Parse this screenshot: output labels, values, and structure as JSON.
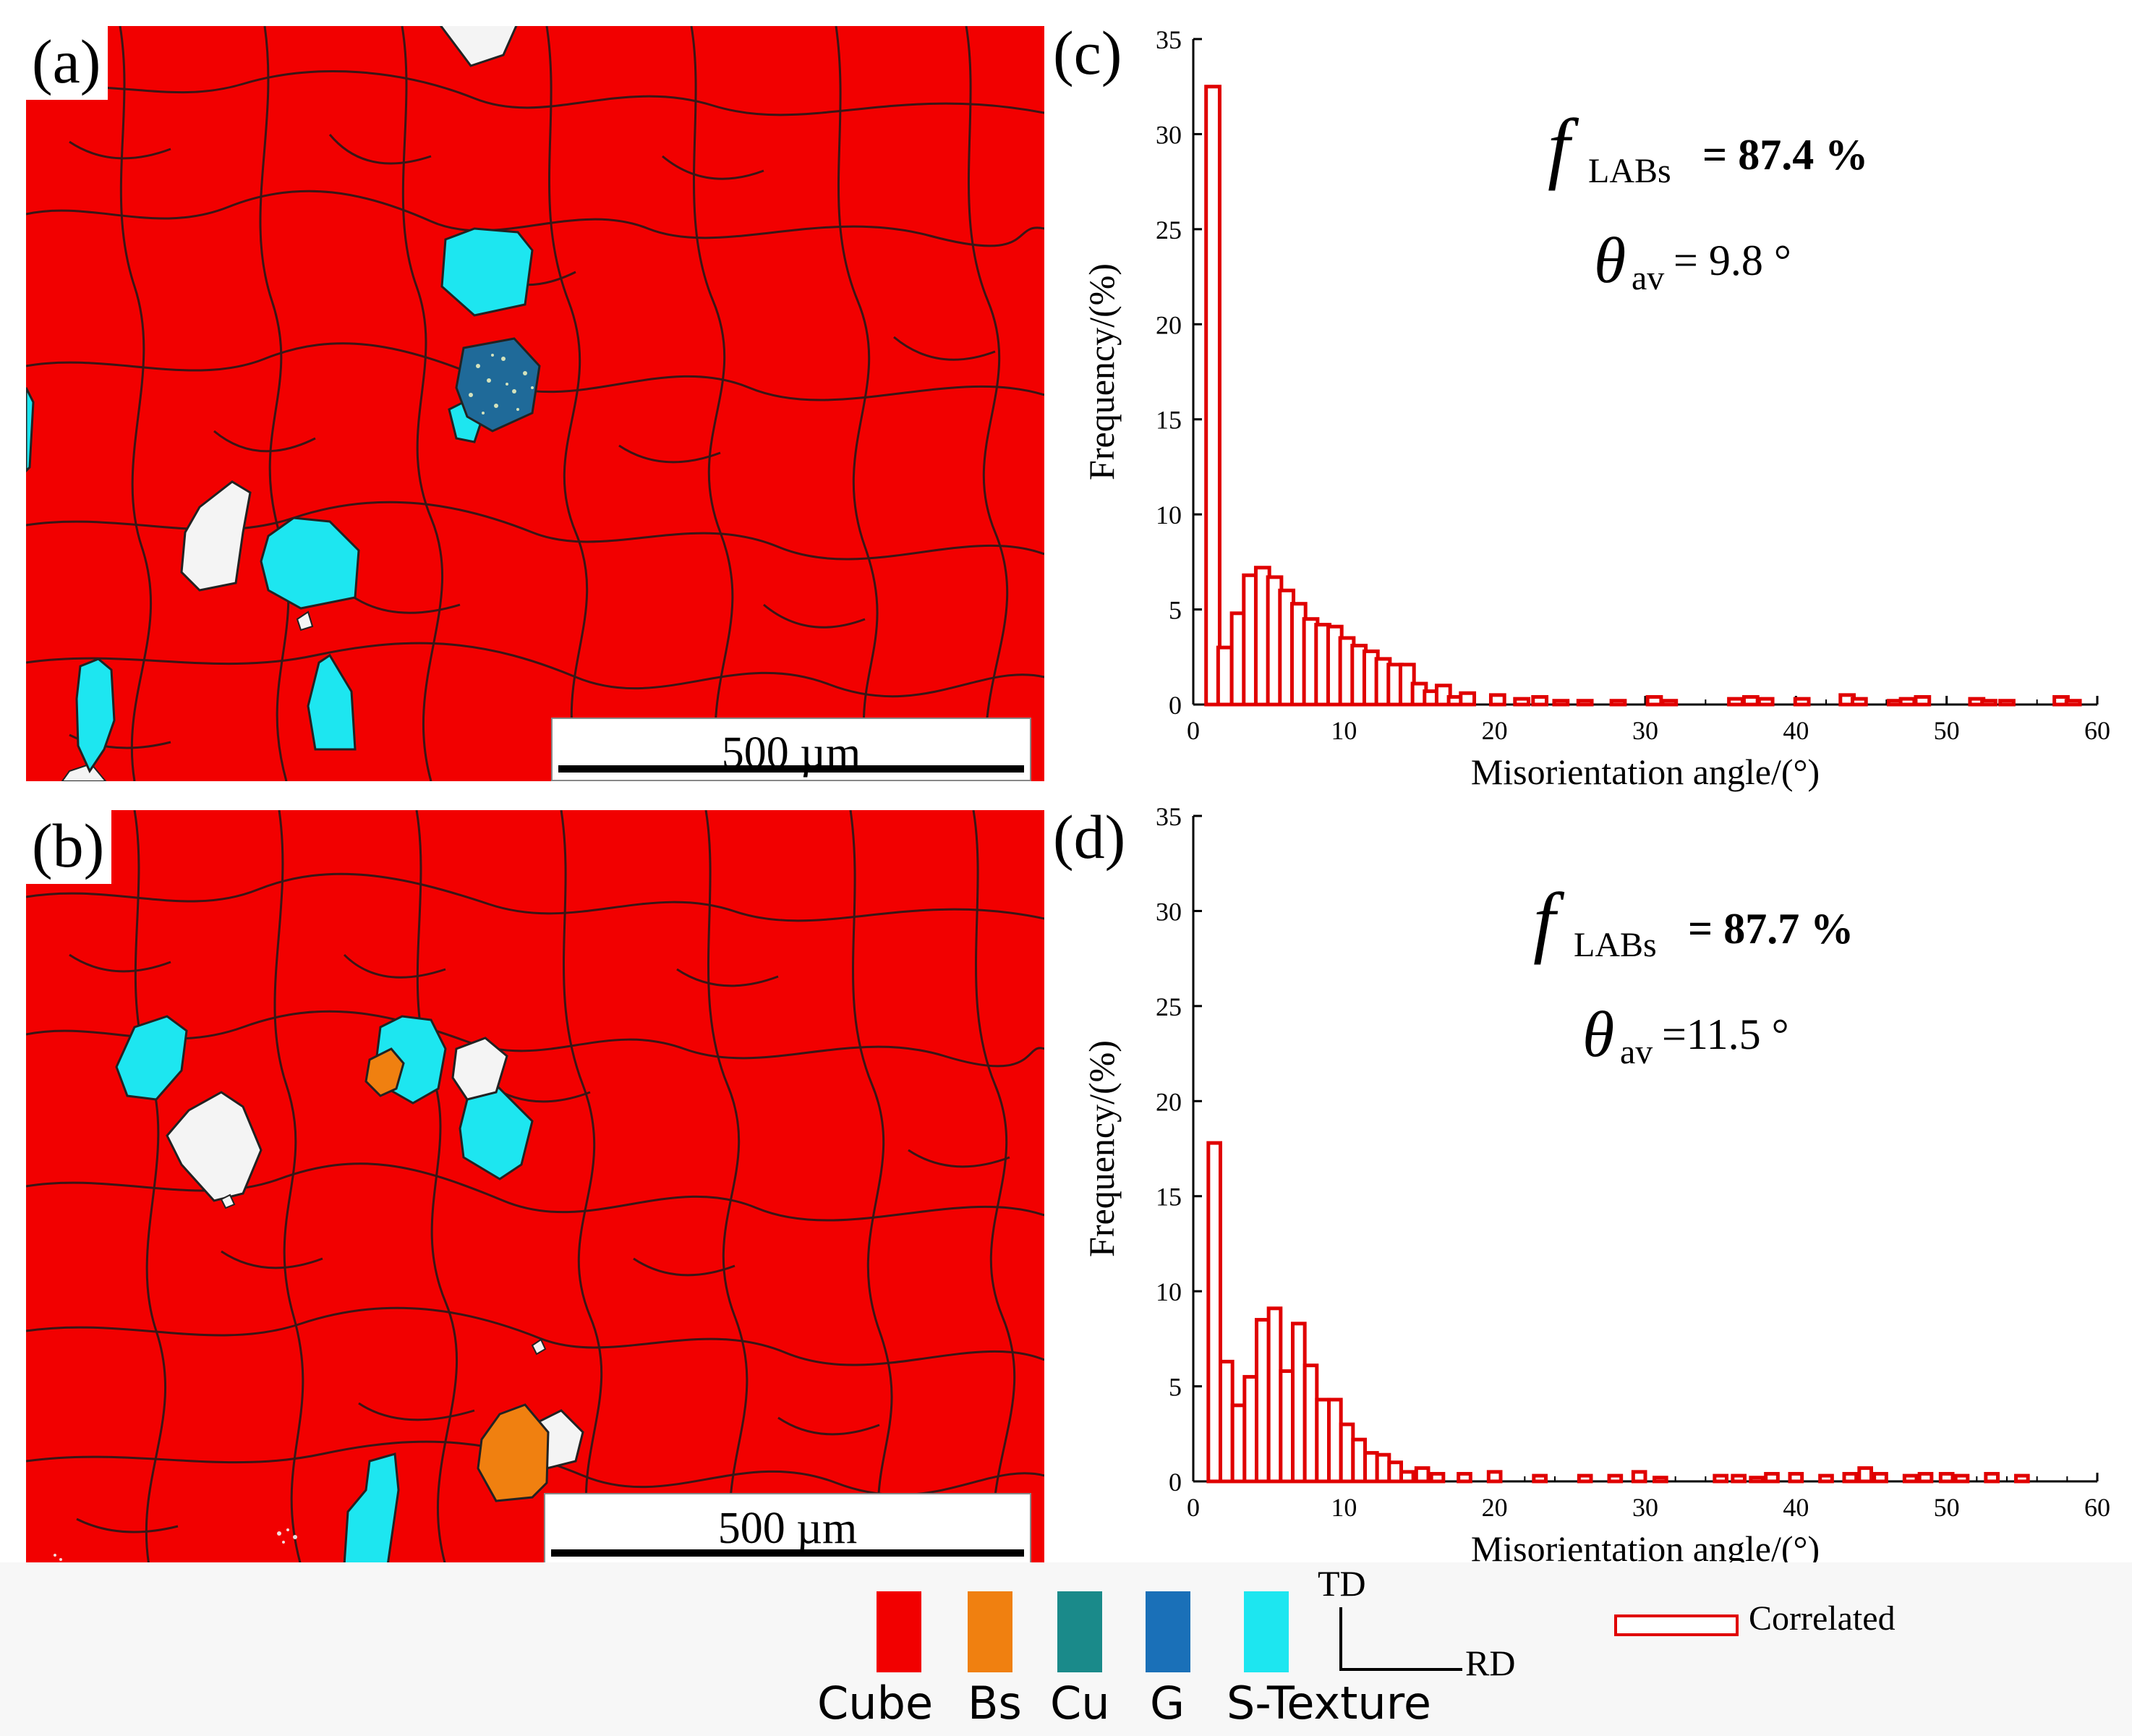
{
  "panels": {
    "a": {
      "label": "(a)",
      "scale_text": "500 µm"
    },
    "b": {
      "label": "(b)",
      "scale_text": "500 µm"
    },
    "c": {
      "label": "(c)"
    },
    "d": {
      "label": "(d)"
    }
  },
  "legend": {
    "items": [
      {
        "name": "Cube",
        "color": "#f20000"
      },
      {
        "name": "Bs",
        "color": "#f08010"
      },
      {
        "name": "Cu",
        "color": "#1a8a8a"
      },
      {
        "name": "G",
        "color": "#1a70b8"
      },
      {
        "name": "S-Texture",
        "color": "#1de6f0"
      }
    ],
    "axes": {
      "td": "TD",
      "rd": "RD"
    },
    "series_label": "Correlated"
  },
  "chart_data": [
    {
      "type": "bar",
      "panel": "c",
      "xlabel": "Misorientation angle/(°)",
      "ylabel": "Frequency/(%)",
      "xlim": [
        0,
        60
      ],
      "ylim": [
        0,
        35
      ],
      "xticks": [
        0,
        10,
        20,
        30,
        40,
        50,
        60
      ],
      "yticks": [
        0,
        5,
        10,
        15,
        20,
        25,
        30,
        35
      ],
      "annotations": {
        "f_symbol": "f",
        "f_sub": "LABs",
        "f_value": "= 87.4 %",
        "theta_symbol": "θ",
        "theta_sub": "av",
        "theta_value": "= 9.8 °"
      },
      "series": [
        {
          "name": "Correlated",
          "bin_width": 0.9,
          "x": [
            1.3,
            2.1,
            3.0,
            3.8,
            4.6,
            5.4,
            6.2,
            7.0,
            7.8,
            8.6,
            9.4,
            10.2,
            11.0,
            11.8,
            12.6,
            13.4,
            14.2,
            15.0,
            15.8,
            16.6,
            17.4,
            18.2,
            20.2,
            21.8,
            23.0,
            24.4,
            26.0,
            28.2,
            30.6,
            31.6,
            36.0,
            37.0,
            38.0,
            40.4,
            43.4,
            44.2,
            46.6,
            47.4,
            48.4,
            52.0,
            52.8,
            54.0,
            57.6,
            58.4
          ],
          "values": [
            32.5,
            3.0,
            4.8,
            6.8,
            7.2,
            6.7,
            6.0,
            5.3,
            4.5,
            4.2,
            4.1,
            3.5,
            3.1,
            2.8,
            2.4,
            2.1,
            2.1,
            1.1,
            0.7,
            1.0,
            0.4,
            0.6,
            0.5,
            0.3,
            0.4,
            0.2,
            0.2,
            0.2,
            0.4,
            0.2,
            0.3,
            0.4,
            0.3,
            0.3,
            0.5,
            0.3,
            0.2,
            0.3,
            0.4,
            0.3,
            0.2,
            0.2,
            0.4,
            0.2
          ]
        }
      ]
    },
    {
      "type": "bar",
      "panel": "d",
      "xlabel": "Misorientation angle/(°)",
      "ylabel": "Frequency/(%)",
      "xlim": [
        0,
        60
      ],
      "ylim": [
        0,
        35
      ],
      "xticks": [
        0,
        10,
        20,
        30,
        40,
        50,
        60
      ],
      "yticks": [
        0,
        5,
        10,
        15,
        20,
        25,
        30,
        35
      ],
      "annotations": {
        "f_symbol": "f",
        "f_sub": "LABs",
        "f_value": "= 87.7 %",
        "theta_symbol": "θ",
        "theta_sub": "av",
        "theta_value": "=11.5 °"
      },
      "series": [
        {
          "name": "Correlated",
          "bin_width": 0.8,
          "x": [
            1.4,
            2.2,
            3.0,
            3.8,
            4.6,
            5.4,
            6.2,
            7.0,
            7.8,
            8.6,
            9.4,
            10.2,
            11.0,
            11.8,
            12.6,
            13.4,
            14.2,
            15.2,
            16.2,
            18.0,
            20.0,
            23.0,
            26.0,
            28.0,
            29.6,
            31.0,
            35.0,
            36.2,
            37.4,
            38.4,
            40.0,
            42.0,
            43.6,
            44.6,
            45.6,
            47.6,
            48.6,
            50.0,
            51.0,
            53.0,
            55.0
          ],
          "values": [
            17.8,
            6.3,
            4.0,
            5.5,
            8.5,
            9.1,
            5.8,
            8.3,
            6.1,
            4.3,
            4.3,
            3.0,
            2.2,
            1.5,
            1.4,
            1.0,
            0.5,
            0.7,
            0.4,
            0.4,
            0.5,
            0.3,
            0.3,
            0.3,
            0.5,
            0.2,
            0.3,
            0.3,
            0.2,
            0.4,
            0.4,
            0.3,
            0.4,
            0.7,
            0.4,
            0.3,
            0.4,
            0.4,
            0.3,
            0.4,
            0.3
          ]
        }
      ]
    }
  ]
}
